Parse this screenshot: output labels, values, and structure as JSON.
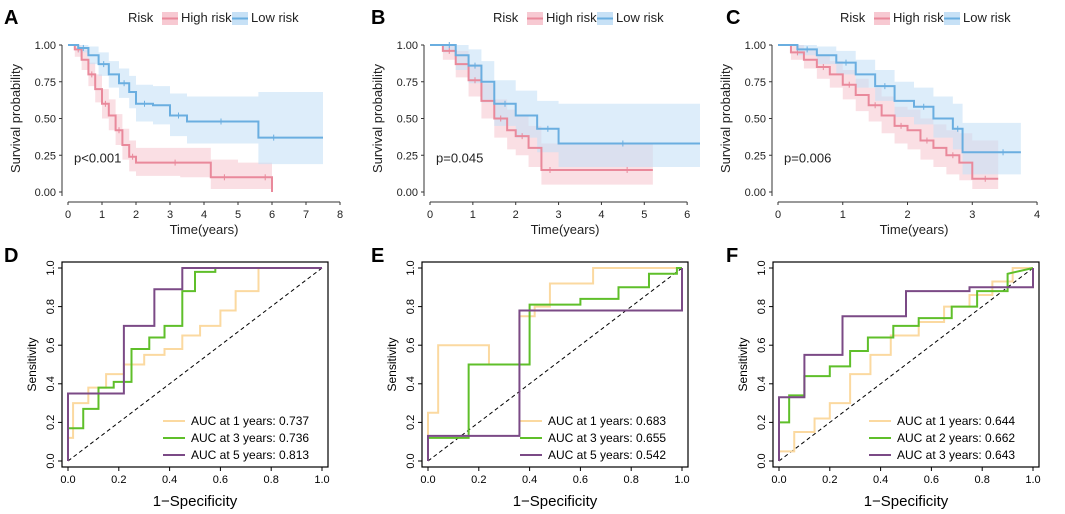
{
  "colors": {
    "high": "#e9899b",
    "high_band": "#f7c9d2",
    "low": "#6aaee0",
    "low_band": "#c7e1f6",
    "auc1": "#fbd9a0",
    "auc3": "#5fbf2a",
    "auc5": "#7b4a86"
  },
  "chart_data": [
    {
      "panel": "A",
      "type": "line",
      "subtype": "kaplan-meier",
      "legend_title": "Risk",
      "legend": [
        "High risk",
        "Low risk"
      ],
      "xlabel": "Time(years)",
      "ylabel": "Survival probability",
      "xlim": [
        0,
        8
      ],
      "ylim": [
        0,
        1
      ],
      "xticks": [
        0,
        1,
        2,
        3,
        4,
        5,
        6,
        7,
        8
      ],
      "yticks": [
        "0.00",
        "0.25",
        "0.50",
        "0.75",
        "1.00"
      ],
      "annotation": "p<0.001",
      "series": [
        {
          "name": "High risk",
          "x": [
            0,
            0.2,
            0.4,
            0.6,
            0.8,
            1.0,
            1.2,
            1.4,
            1.6,
            1.8,
            2.0,
            3.0,
            3.3,
            4.2,
            5.0,
            5.6,
            6.0
          ],
          "y": [
            1.0,
            0.97,
            0.9,
            0.8,
            0.7,
            0.6,
            0.52,
            0.42,
            0.32,
            0.24,
            0.2,
            0.2,
            0.2,
            0.1,
            0.1,
            0.1,
            0.0
          ],
          "lo": [
            1.0,
            0.92,
            0.83,
            0.72,
            0.61,
            0.5,
            0.42,
            0.32,
            0.22,
            0.14,
            0.11,
            0.11,
            0.1,
            0.02,
            0.02,
            0.02,
            0.0
          ],
          "hi": [
            1.0,
            1.0,
            0.97,
            0.88,
            0.8,
            0.7,
            0.63,
            0.53,
            0.43,
            0.35,
            0.3,
            0.3,
            0.3,
            0.22,
            0.2,
            0.2,
            0.2
          ]
        },
        {
          "name": "Low risk",
          "x": [
            0,
            0.3,
            0.6,
            0.9,
            1.2,
            1.5,
            1.8,
            2.0,
            2.5,
            3.0,
            3.5,
            4.0,
            5.0,
            5.6,
            6.5,
            7.5
          ],
          "y": [
            1.0,
            0.98,
            0.93,
            0.87,
            0.8,
            0.74,
            0.68,
            0.6,
            0.59,
            0.52,
            0.48,
            0.48,
            0.48,
            0.37,
            0.37,
            0.37
          ],
          "lo": [
            1.0,
            0.95,
            0.87,
            0.79,
            0.71,
            0.64,
            0.57,
            0.48,
            0.46,
            0.38,
            0.33,
            0.33,
            0.33,
            0.19,
            0.19,
            0.19
          ],
          "hi": [
            1.0,
            1.0,
            0.99,
            0.95,
            0.89,
            0.84,
            0.79,
            0.73,
            0.72,
            0.67,
            0.65,
            0.65,
            0.65,
            0.68,
            0.68,
            0.68
          ]
        }
      ]
    },
    {
      "panel": "B",
      "type": "line",
      "subtype": "kaplan-meier",
      "legend_title": "Risk",
      "legend": [
        "High risk",
        "Low risk"
      ],
      "xlabel": "Time(years)",
      "ylabel": "Survival probability",
      "xlim": [
        0,
        6.3
      ],
      "ylim": [
        0,
        1
      ],
      "xticks": [
        0,
        1,
        2,
        3,
        4,
        5,
        6
      ],
      "yticks": [
        "0.00",
        "0.25",
        "0.50",
        "0.75",
        "1.00"
      ],
      "annotation": "p=0.045",
      "series": [
        {
          "name": "High risk",
          "x": [
            0,
            0.3,
            0.6,
            0.9,
            1.2,
            1.5,
            1.8,
            2.0,
            2.3,
            2.6,
            3.0,
            4.0,
            5.2
          ],
          "y": [
            1.0,
            0.96,
            0.87,
            0.76,
            0.62,
            0.5,
            0.42,
            0.38,
            0.3,
            0.15,
            0.15,
            0.15,
            0.15
          ],
          "lo": [
            1.0,
            0.9,
            0.78,
            0.65,
            0.5,
            0.37,
            0.29,
            0.25,
            0.17,
            0.05,
            0.05,
            0.05,
            0.05
          ],
          "hi": [
            1.0,
            1.0,
            0.96,
            0.87,
            0.74,
            0.63,
            0.56,
            0.52,
            0.45,
            0.33,
            0.33,
            0.33,
            0.33
          ]
        },
        {
          "name": "Low risk",
          "x": [
            0,
            0.3,
            0.6,
            0.9,
            1.2,
            1.5,
            2.0,
            2.5,
            3.0,
            4.0,
            5.0,
            6.3
          ],
          "y": [
            1.0,
            1.0,
            0.93,
            0.86,
            0.75,
            0.6,
            0.52,
            0.43,
            0.33,
            0.33,
            0.33,
            0.33
          ],
          "lo": [
            1.0,
            0.95,
            0.83,
            0.74,
            0.61,
            0.45,
            0.37,
            0.27,
            0.17,
            0.17,
            0.17,
            0.17
          ],
          "hi": [
            1.0,
            1.0,
            1.0,
            0.97,
            0.89,
            0.76,
            0.69,
            0.62,
            0.6,
            0.6,
            0.6,
            0.6
          ]
        }
      ]
    },
    {
      "panel": "C",
      "type": "line",
      "subtype": "kaplan-meier",
      "legend_title": "Risk",
      "legend": [
        "High risk",
        "Low risk"
      ],
      "xlabel": "Time(years)",
      "ylabel": "Survival probability",
      "xlim": [
        0,
        4.2
      ],
      "ylim": [
        0,
        1
      ],
      "xticks": [
        0,
        1,
        2,
        3,
        4
      ],
      "yticks": [
        "0.00",
        "0.25",
        "0.50",
        "0.75",
        "1.00"
      ],
      "annotation": "p=0.006",
      "series": [
        {
          "name": "High risk",
          "x": [
            0,
            0.2,
            0.4,
            0.6,
            0.8,
            1.0,
            1.2,
            1.4,
            1.6,
            1.8,
            2.0,
            2.2,
            2.4,
            2.6,
            2.8,
            3.0,
            3.4
          ],
          "y": [
            1.0,
            0.95,
            0.9,
            0.85,
            0.8,
            0.73,
            0.66,
            0.59,
            0.52,
            0.45,
            0.42,
            0.35,
            0.3,
            0.25,
            0.2,
            0.09,
            0.09
          ],
          "lo": [
            1.0,
            0.9,
            0.84,
            0.77,
            0.71,
            0.63,
            0.55,
            0.48,
            0.4,
            0.33,
            0.29,
            0.22,
            0.17,
            0.12,
            0.08,
            0.02,
            0.02
          ],
          "hi": [
            1.0,
            1.0,
            0.97,
            0.93,
            0.89,
            0.83,
            0.77,
            0.71,
            0.65,
            0.58,
            0.56,
            0.5,
            0.46,
            0.42,
            0.4,
            0.35,
            0.35
          ]
        },
        {
          "name": "Low risk",
          "x": [
            0,
            0.3,
            0.6,
            0.9,
            1.2,
            1.5,
            1.8,
            2.1,
            2.4,
            2.7,
            2.85,
            3.2,
            3.75
          ],
          "y": [
            1.0,
            0.97,
            0.93,
            0.88,
            0.8,
            0.72,
            0.62,
            0.58,
            0.5,
            0.43,
            0.27,
            0.27,
            0.27
          ],
          "lo": [
            1.0,
            0.93,
            0.87,
            0.8,
            0.71,
            0.62,
            0.51,
            0.46,
            0.37,
            0.29,
            0.12,
            0.12,
            0.12
          ],
          "hi": [
            1.0,
            1.0,
            0.99,
            0.96,
            0.9,
            0.83,
            0.75,
            0.71,
            0.65,
            0.6,
            0.47,
            0.47,
            0.47
          ]
        }
      ]
    },
    {
      "panel": "D",
      "type": "line",
      "subtype": "roc",
      "xlabel": "1−Specificity",
      "ylabel": "Sensitivity",
      "xlim": [
        0,
        1
      ],
      "ylim": [
        0,
        1
      ],
      "ticks": [
        "0.0",
        "0.2",
        "0.4",
        "0.6",
        "0.8",
        "1.0"
      ],
      "series": [
        {
          "name": "AUC at 1 years: 0.737",
          "color_key": "auc1",
          "x": [
            0,
            0,
            0.02,
            0.02,
            0.08,
            0.08,
            0.15,
            0.15,
            0.22,
            0.22,
            0.3,
            0.3,
            0.38,
            0.38,
            0.45,
            0.45,
            0.52,
            0.52,
            0.6,
            0.6,
            0.66,
            0.66,
            0.75,
            0.75,
            1.0
          ],
          "y": [
            0,
            0.12,
            0.12,
            0.3,
            0.3,
            0.38,
            0.38,
            0.45,
            0.45,
            0.5,
            0.5,
            0.55,
            0.55,
            0.58,
            0.58,
            0.65,
            0.65,
            0.7,
            0.7,
            0.78,
            0.78,
            0.88,
            0.88,
            1.0,
            1.0
          ]
        },
        {
          "name": "AUC at 3 years: 0.736",
          "color_key": "auc3",
          "x": [
            0,
            0,
            0.06,
            0.06,
            0.12,
            0.12,
            0.18,
            0.18,
            0.25,
            0.25,
            0.32,
            0.32,
            0.38,
            0.38,
            0.45,
            0.45,
            0.5,
            0.5,
            0.58,
            0.58,
            1.0
          ],
          "y": [
            0,
            0.17,
            0.17,
            0.27,
            0.27,
            0.38,
            0.38,
            0.41,
            0.41,
            0.58,
            0.58,
            0.64,
            0.64,
            0.7,
            0.7,
            0.88,
            0.88,
            0.98,
            0.98,
            1.0,
            1.0
          ],
          "raw_note": ""
        },
        {
          "name": "AUC at 5 years: 0.813",
          "color_key": "auc5",
          "x": [
            0,
            0,
            0.22,
            0.22,
            0.34,
            0.34,
            0.45,
            0.45,
            1.0
          ],
          "y": [
            0,
            0.35,
            0.35,
            0.7,
            0.7,
            0.89,
            0.89,
            1.0,
            1.0
          ]
        }
      ]
    },
    {
      "panel": "E",
      "type": "line",
      "subtype": "roc",
      "xlabel": "1−Specificity",
      "ylabel": "Sensitivity",
      "xlim": [
        0,
        1
      ],
      "ylim": [
        0,
        1
      ],
      "ticks": [
        "0.0",
        "0.2",
        "0.4",
        "0.6",
        "0.8",
        "1.0"
      ],
      "series": [
        {
          "name": "AUC at 1 years: 0.683",
          "color_key": "auc1",
          "x": [
            0,
            0,
            0.04,
            0.04,
            0.24,
            0.24,
            0.36,
            0.36,
            0.42,
            0.42,
            0.48,
            0.48,
            0.65,
            0.65,
            1.0
          ],
          "y": [
            0,
            0.25,
            0.25,
            0.6,
            0.6,
            0.5,
            0.5,
            0.75,
            0.75,
            0.8,
            0.8,
            0.92,
            0.92,
            1.0,
            1.0
          ]
        },
        {
          "name": "AUC at 3 years: 0.655",
          "color_key": "auc3",
          "x": [
            0,
            0,
            0.16,
            0.16,
            0.4,
            0.4,
            0.6,
            0.6,
            0.75,
            0.75,
            0.87,
            0.87,
            0.98,
            0.98,
            1.0
          ],
          "y": [
            0,
            0.12,
            0.12,
            0.5,
            0.5,
            0.81,
            0.81,
            0.84,
            0.84,
            0.9,
            0.9,
            0.97,
            0.97,
            1.0,
            1.0
          ]
        },
        {
          "name": "AUC at 5 years: 0.542",
          "color_key": "auc5",
          "x": [
            0,
            0,
            0.36,
            0.36,
            1.0,
            1.0
          ],
          "y": [
            0,
            0.13,
            0.13,
            0.78,
            0.78,
            1.0
          ]
        }
      ]
    },
    {
      "panel": "F",
      "type": "line",
      "subtype": "roc",
      "xlabel": "1−Specificity",
      "ylabel": "Sensitivity",
      "xlim": [
        0,
        1
      ],
      "ylim": [
        0,
        1
      ],
      "ticks": [
        "0.0",
        "0.2",
        "0.4",
        "0.6",
        "0.8",
        "1.0"
      ],
      "series": [
        {
          "name": "AUC at 1 years: 0.644",
          "color_key": "auc1",
          "x": [
            0,
            0,
            0.06,
            0.06,
            0.14,
            0.14,
            0.2,
            0.2,
            0.28,
            0.28,
            0.36,
            0.36,
            0.44,
            0.44,
            0.55,
            0.55,
            0.65,
            0.65,
            0.75,
            0.75,
            0.84,
            0.84,
            0.92,
            0.92,
            1.0
          ],
          "y": [
            0,
            0.05,
            0.05,
            0.15,
            0.15,
            0.22,
            0.22,
            0.3,
            0.3,
            0.45,
            0.45,
            0.55,
            0.55,
            0.65,
            0.65,
            0.72,
            0.72,
            0.8,
            0.8,
            0.86,
            0.86,
            0.93,
            0.93,
            1.0,
            1.0
          ]
        },
        {
          "name": "AUC at 2 years: 0.662",
          "color_key": "auc3",
          "x": [
            0,
            0,
            0.04,
            0.04,
            0.1,
            0.1,
            0.2,
            0.2,
            0.28,
            0.28,
            0.35,
            0.35,
            0.45,
            0.45,
            0.55,
            0.55,
            0.68,
            0.68,
            0.78,
            0.78,
            0.9,
            0.9,
            1.0
          ],
          "y": [
            0,
            0.2,
            0.2,
            0.34,
            0.34,
            0.44,
            0.44,
            0.49,
            0.49,
            0.57,
            0.57,
            0.64,
            0.64,
            0.7,
            0.7,
            0.74,
            0.74,
            0.8,
            0.8,
            0.88,
            0.88,
            0.97,
            1.0
          ]
        },
        {
          "name": "AUC at 3 years: 0.643",
          "color_key": "auc5",
          "x": [
            0,
            0,
            0.1,
            0.1,
            0.25,
            0.25,
            0.5,
            0.5,
            0.75,
            0.75,
            1.0,
            1.0
          ],
          "y": [
            0,
            0.33,
            0.33,
            0.55,
            0.55,
            0.75,
            0.75,
            0.88,
            0.88,
            0.9,
            0.9,
            1.0
          ]
        }
      ]
    }
  ]
}
